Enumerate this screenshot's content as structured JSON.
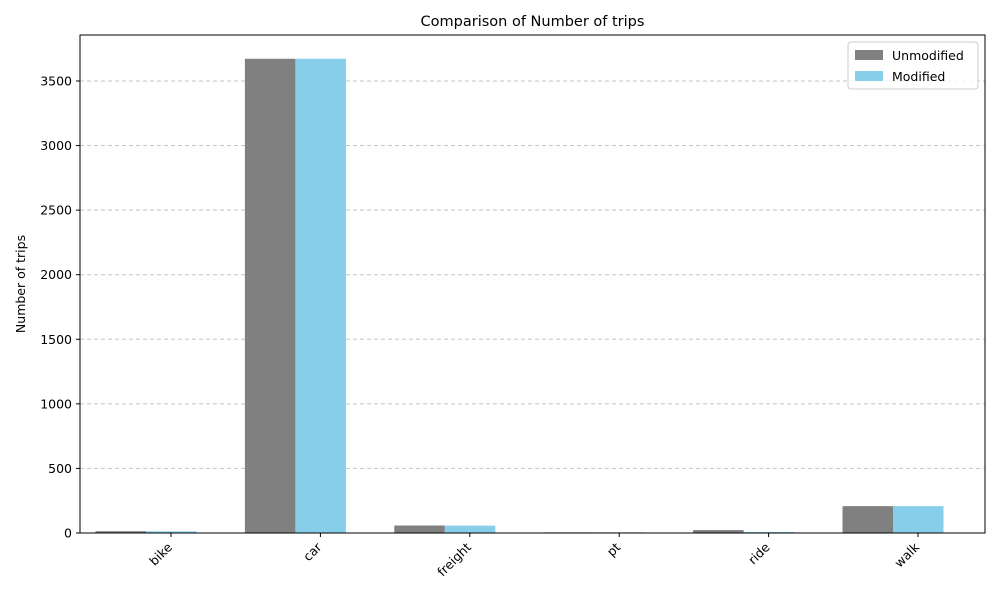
{
  "chart_data": {
    "type": "bar",
    "title": "Comparison of Number of trips",
    "xlabel": "",
    "ylabel": "Number of trips",
    "categories": [
      "bike",
      "car",
      "freight",
      "pt",
      "ride",
      "walk"
    ],
    "series": [
      {
        "name": "Unmodified",
        "color": "#808080",
        "values": [
          14,
          3672,
          58,
          5,
          23,
          208
        ]
      },
      {
        "name": "Modified",
        "color": "#87CEEB",
        "values": [
          13,
          3672,
          57,
          5,
          8,
          208
        ]
      }
    ],
    "ylim": [
      0,
      3856
    ],
    "yticks": [
      0,
      500,
      1000,
      1500,
      2000,
      2500,
      3000,
      3500
    ],
    "grid": "y-dashed",
    "legend_position": "top-right"
  }
}
